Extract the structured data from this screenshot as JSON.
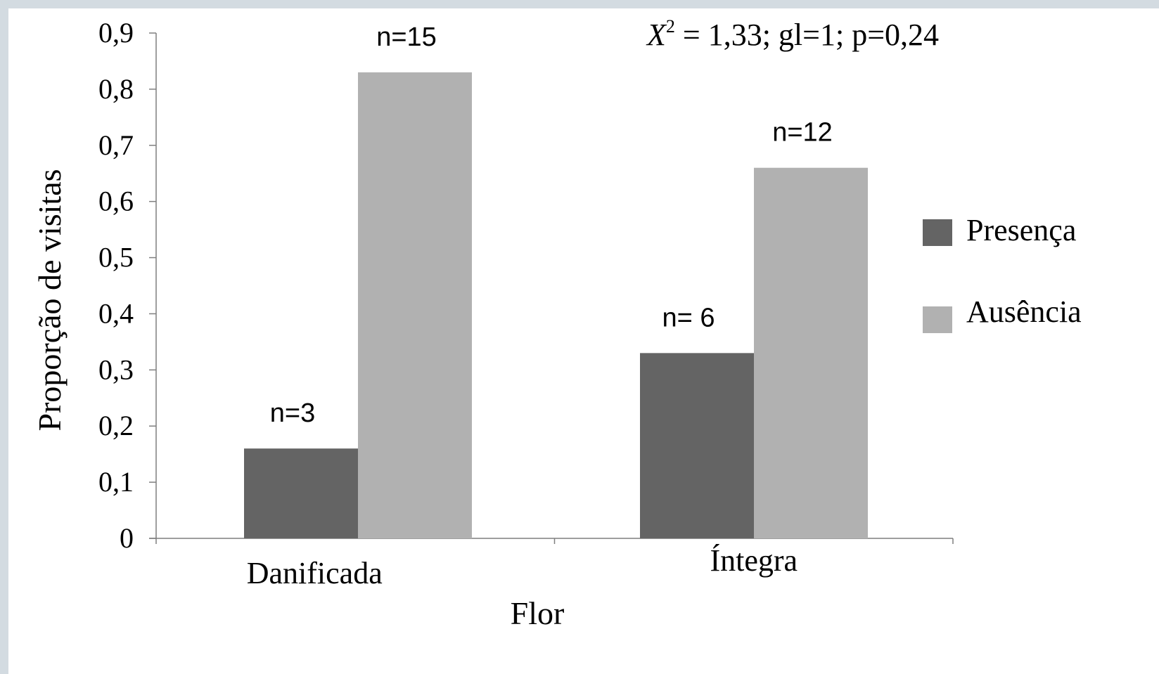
{
  "chart_data": {
    "type": "bar",
    "xlabel": "Flor",
    "ylabel": "Proporção de visitas",
    "ylim": [
      0,
      0.9
    ],
    "ytick_labels": [
      "0",
      "0,1",
      "0,2",
      "0,3",
      "0,4",
      "0,5",
      "0,6",
      "0,7",
      "0,8",
      "0,9"
    ],
    "categories": [
      "Danificada",
      "Íntegra"
    ],
    "series": [
      {
        "name": "Presença",
        "color": "#646464",
        "values": [
          0.16,
          0.33
        ],
        "labels": [
          "n=3",
          "n= 6"
        ]
      },
      {
        "name": "Ausência",
        "color": "#b1b1b1",
        "values": [
          0.83,
          0.66
        ],
        "labels": [
          "n=15",
          "n=12"
        ]
      }
    ],
    "annotation": {
      "symbol": "X",
      "exponent": "2",
      "rest": " = 1,33; gl=1; p=0,24"
    },
    "legend_position": "right",
    "grid": false
  }
}
